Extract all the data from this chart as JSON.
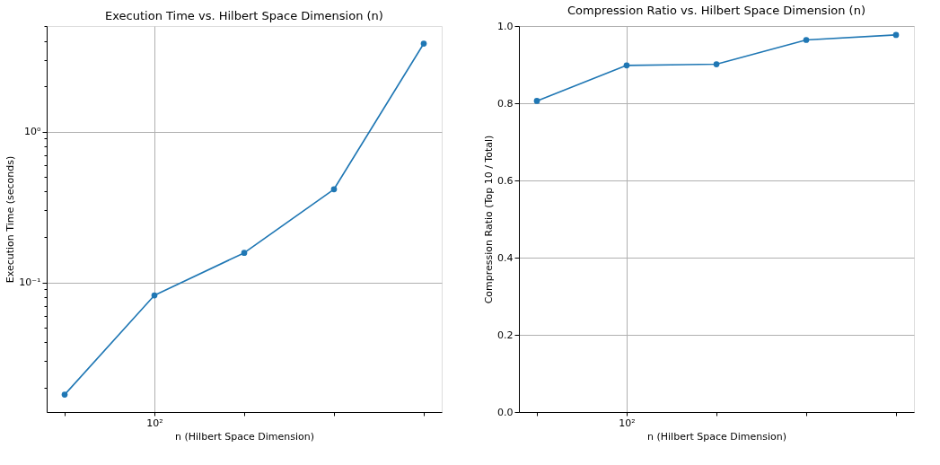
{
  "chart_data": [
    {
      "type": "line",
      "title": "Execution Time vs. Hilbert Space Dimension (n)",
      "xlabel": "n (Hilbert Space Dimension)",
      "ylabel": "Execution Time (seconds)",
      "categories": [
        null,
        "10²",
        null,
        null,
        null
      ],
      "series": [
        {
          "color": "#1f77b4",
          "values": [
            0.018,
            0.082,
            0.157,
            0.415,
            3.84
          ]
        }
      ],
      "log": "y",
      "ylim": [
        0.0138,
        5.02
      ],
      "yticks": [
        {
          "value": 0.02,
          "label": null
        },
        {
          "value": 0.03,
          "label": null
        },
        {
          "value": 0.04,
          "label": null
        },
        {
          "value": 0.05,
          "label": null
        },
        {
          "value": 0.06,
          "label": null
        },
        {
          "value": 0.07,
          "label": null
        },
        {
          "value": 0.08,
          "label": null
        },
        {
          "value": 0.09,
          "label": null
        },
        {
          "value": 0.1,
          "label": "10⁻¹"
        },
        {
          "value": 0.2,
          "label": null
        },
        {
          "value": 0.3,
          "label": null
        },
        {
          "value": 0.4,
          "label": null
        },
        {
          "value": 0.5,
          "label": null
        },
        {
          "value": 0.6,
          "label": null
        },
        {
          "value": 0.7,
          "label": null
        },
        {
          "value": 0.8,
          "label": null
        },
        {
          "value": 0.9,
          "label": null
        },
        {
          "value": 1,
          "label": "10⁰"
        },
        {
          "value": 2,
          "label": null
        },
        {
          "value": 3,
          "label": null
        },
        {
          "value": 4,
          "label": null
        },
        {
          "value": 5,
          "label": null
        }
      ],
      "grid": true,
      "marker": "circle",
      "line_style": "solid"
    },
    {
      "type": "line",
      "title": "Compression Ratio vs. Hilbert Space Dimension (n)",
      "xlabel": "n (Hilbert Space Dimension)",
      "ylabel": "Compression Ratio (Top 10 / Total)",
      "categories": [
        null,
        "10²",
        null,
        null,
        null
      ],
      "series": [
        {
          "color": "#1f77b4",
          "values": [
            0.806,
            0.898,
            0.901,
            0.964,
            0.977
          ]
        }
      ],
      "ylim": [
        0,
        1
      ],
      "yticks": [
        {
          "value": 0,
          "label": "0.0"
        },
        {
          "value": 0.2,
          "label": "0.2"
        },
        {
          "value": 0.4,
          "label": "0.4"
        },
        {
          "value": 0.6,
          "label": "0.6"
        },
        {
          "value": 0.8,
          "label": "0.8"
        },
        {
          "value": 1.0,
          "label": "1.0"
        }
      ],
      "grid": true,
      "marker": "circle",
      "line_style": "solid"
    }
  ]
}
